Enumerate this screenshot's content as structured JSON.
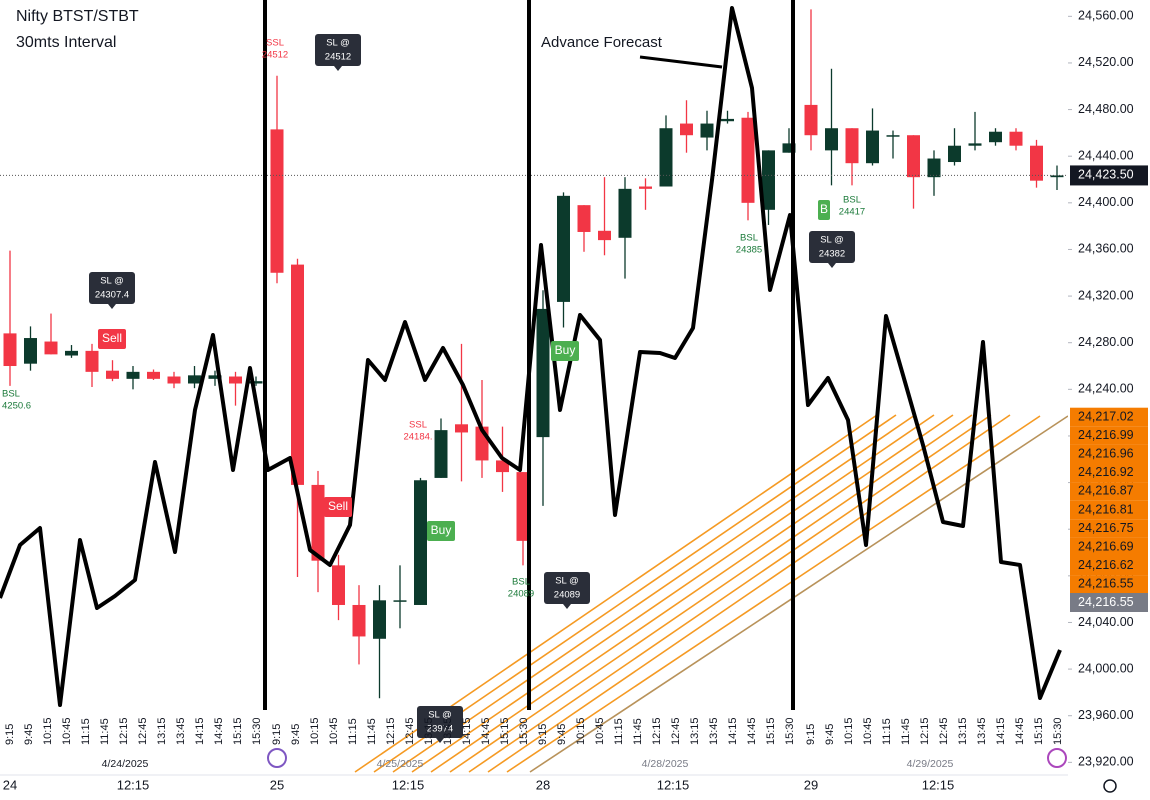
{
  "chart_data": {
    "type": "candlestick",
    "title": "Nifty BTST/STBT",
    "subtitle": "30mts Interval",
    "note": "Advance Forecast",
    "up_color": "#0c3a2c",
    "down_color": "#f23645",
    "ylim": [
      23910,
      24574
    ],
    "yticks": [
      {
        "value": 24560,
        "label": "24,560.00"
      },
      {
        "value": 24520,
        "label": "24,520.00"
      },
      {
        "value": 24480,
        "label": "24,480.00"
      },
      {
        "value": 24440,
        "label": "24,440.00"
      },
      {
        "value": 24400,
        "label": "24,400.00"
      },
      {
        "value": 24360,
        "label": "24,360.00"
      },
      {
        "value": 24320,
        "label": "24,320.00"
      },
      {
        "value": 24280,
        "label": "24,280.00"
      },
      {
        "value": 24240,
        "label": "24,240.00"
      },
      {
        "value": 24200,
        "label": "24,200.00"
      },
      {
        "value": 24160,
        "label": "24,160.00"
      },
      {
        "value": 24120,
        "label": "24,120.00"
      },
      {
        "value": 24080,
        "label": "24,080.00"
      },
      {
        "value": 24040,
        "label": "24,040.00"
      },
      {
        "value": 24000,
        "label": "24,000.00"
      },
      {
        "value": 23960,
        "label": "23,960.00"
      },
      {
        "value": 23920,
        "label": "23,920.00"
      }
    ],
    "time_labels": [
      "9:15",
      "9:45",
      "10:15",
      "10:45",
      "11:15",
      "11:45",
      "12:15",
      "12:45",
      "13:15",
      "13:45",
      "14:15",
      "14:45",
      "15:15",
      "15:30"
    ],
    "mid_time_label": "12:15",
    "sessions": [
      {
        "day_label": "24",
        "date_label": "4/24/2025"
      },
      {
        "day_label": "25",
        "date_label": "4/25/2025"
      },
      {
        "day_label": "28",
        "date_label": "4/28/2025"
      },
      {
        "day_label": "29",
        "date_label": "4/29/2025"
      }
    ],
    "open": [
      24288,
      24262,
      24281,
      24269,
      24273,
      24256,
      24249,
      24255,
      24251,
      24245,
      24249,
      24251,
      24245,
      24463,
      24347,
      24158,
      24089,
      24055,
      24026,
      24058,
      24055,
      24164,
      24210,
      24208,
      24179,
      24169,
      24199,
      24315,
      24398,
      24376,
      24370,
      24414,
      24414,
      24468,
      24456,
      24470,
      24473,
      24394,
      24443,
      24484,
      24445,
      24464,
      24434,
      24457,
      24458,
      24422,
      24435,
      24449,
      24452,
      24461,
      24449,
      24422
    ],
    "high": [
      24359,
      24294,
      24305,
      24278,
      24279,
      24265,
      24260,
      24257,
      24255,
      24260,
      24256,
      24255,
      24251,
      24509,
      24352,
      24170,
      24098,
      24072,
      24072,
      24089,
      24164,
      24215,
      24279,
      24248,
      24208,
      24169,
      24325,
      24409,
      24398,
      24422,
      24422,
      24421,
      24475,
      24488,
      24479,
      24479,
      24478,
      24445,
      24464,
      24566,
      24515,
      24464,
      24481,
      24462,
      24458,
      24445,
      24464,
      24478,
      24464,
      24464,
      24454,
      24432
    ],
    "low": [
      24243,
      24256,
      24270,
      24267,
      24242,
      24247,
      24240,
      24248,
      24241,
      24241,
      24243,
      24226,
      24243,
      24331,
      24079,
      24066,
      24042,
      24004,
      23975,
      24035,
      24055,
      24164,
      24161,
      24164,
      24152,
      24089,
      24140,
      24293,
      24358,
      24355,
      24335,
      24394,
      24414,
      24443,
      24445,
      24468,
      24385,
      24381,
      24443,
      24445,
      24415,
      24415,
      24432,
      24438,
      24395,
      24406,
      24432,
      24445,
      24449,
      24445,
      24413,
      24411
    ],
    "close": [
      24260,
      24284,
      24270,
      24273,
      24255,
      24249,
      24255,
      24249,
      24245,
      24252,
      24252,
      24245,
      24247,
      24340,
      24158,
      24093,
      24055,
      24028,
      24059,
      24059,
      24162,
      24205,
      24203,
      24179,
      24169,
      24110,
      24309,
      24406,
      24375,
      24368,
      24412,
      24412,
      24464,
      24458,
      24468,
      24472,
      24400,
      24445,
      24451,
      24458,
      24464,
      24434,
      24462,
      24458,
      24422,
      24438,
      24449,
      24451,
      24461,
      24449,
      24419,
      24423.5
    ],
    "last_price": {
      "value": 24423.5,
      "label": "24,423.50"
    },
    "drawing_labels": [
      {
        "value": 24217.02,
        "label": "24,217.02"
      },
      {
        "value": 24216.99,
        "label": "24,216.99"
      },
      {
        "value": 24216.96,
        "label": "24,216.96"
      },
      {
        "value": 24216.92,
        "label": "24,216.92"
      },
      {
        "value": 24216.87,
        "label": "24,216.87"
      },
      {
        "value": 24216.81,
        "label": "24,216.81"
      },
      {
        "value": 24216.75,
        "label": "24,216.75"
      },
      {
        "value": 24216.69,
        "label": "24,216.69"
      },
      {
        "value": 24216.62,
        "label": "24,216.62"
      },
      {
        "value": 24216.55,
        "label": "24,216.55"
      }
    ],
    "drawing_base_label": {
      "value": 24216.55,
      "label": "24,216.55"
    },
    "annotations": [
      {
        "text": "SSL",
        "price": 24512
      },
      {
        "text": "SL @",
        "price": 24512
      },
      {
        "text": "SL @",
        "price": 24307.4
      },
      {
        "text": "Sell"
      },
      {
        "text": "BSL",
        "price": 4250.6
      },
      {
        "text": "Sell"
      },
      {
        "text": "SSL",
        "price": {
          "value": 24184,
          "label": "24184."
        }
      },
      {
        "text": "Buy"
      },
      {
        "text": "BSL",
        "price": 24089
      },
      {
        "text": "SL @",
        "price": 24089
      },
      {
        "text": "SL @",
        "price": 23974
      },
      {
        "text": "Buy"
      },
      {
        "text": "BSL",
        "price": 24385
      },
      {
        "text": "B"
      },
      {
        "text": "BSL",
        "price": 24417
      },
      {
        "text": "SL @",
        "price": 24382
      }
    ]
  }
}
